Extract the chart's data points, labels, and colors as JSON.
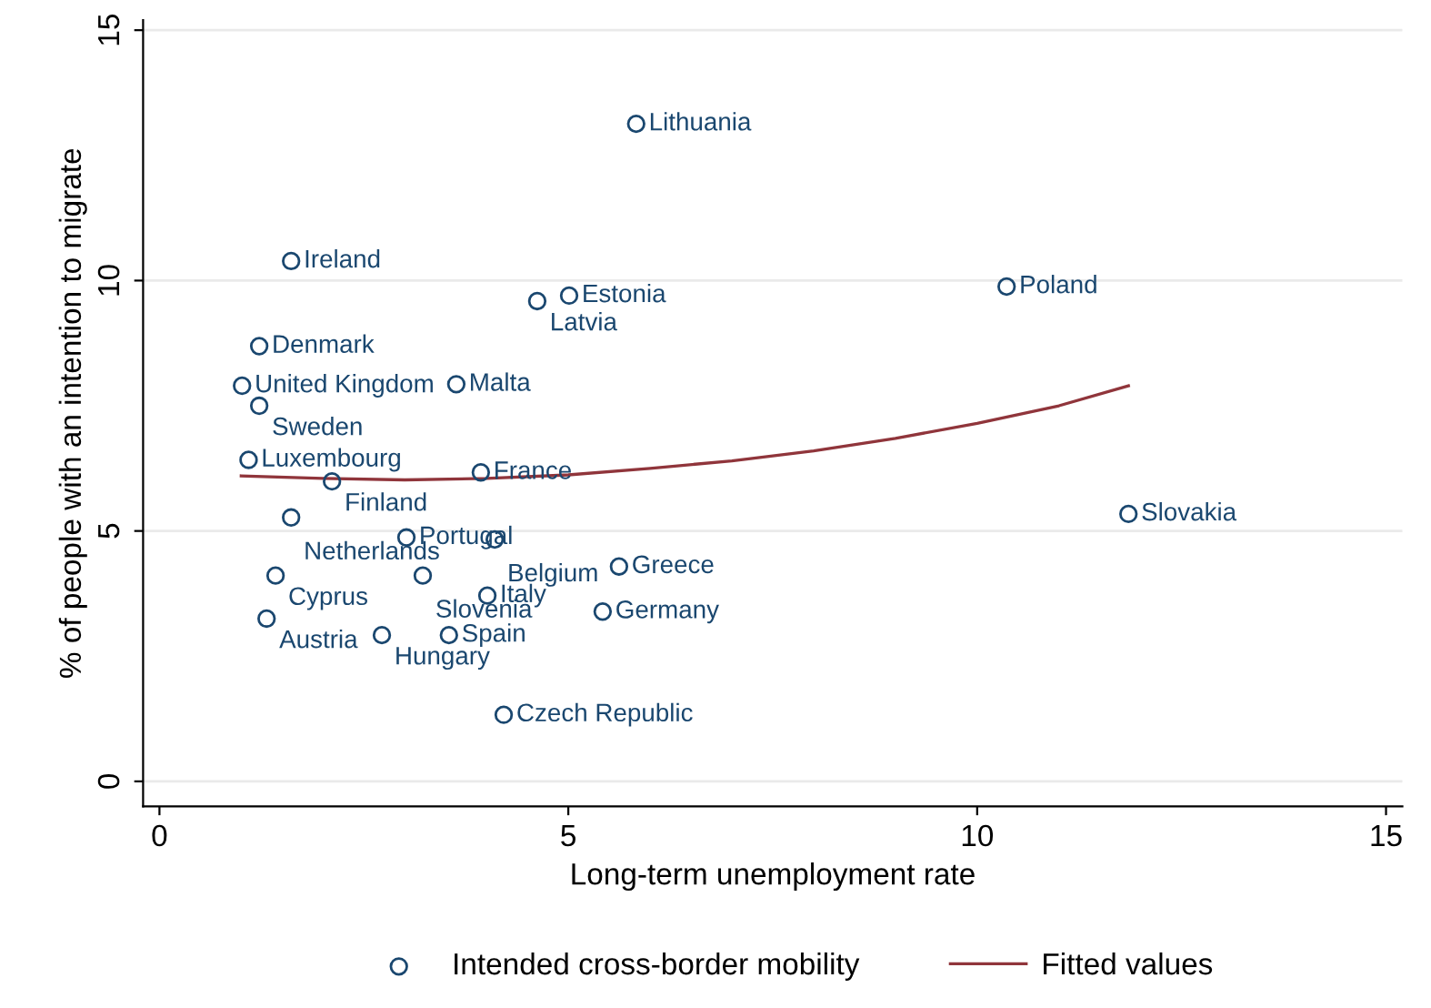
{
  "chart_data": {
    "type": "scatter",
    "xlabel": "Long-term unemployment rate",
    "ylabel": "% of people with an intention to migrate",
    "xlim": [
      -0.2,
      15.2
    ],
    "ylim": [
      -0.5,
      15.2
    ],
    "xticks": [
      0,
      5,
      10,
      15
    ],
    "yticks": [
      0,
      5,
      10,
      15
    ],
    "grid": "y",
    "legend": "bottom",
    "series": [
      {
        "name": "Intended cross-border mobility",
        "color": "#1a476f",
        "marker": "circle",
        "x": [
          5.83,
          1.61,
          4.62,
          5.01,
          1.22,
          1.01,
          3.63,
          1.22,
          1.09,
          2.11,
          3.93,
          1.61,
          3.02,
          4.1,
          1.42,
          3.22,
          4.01,
          5.62,
          1.31,
          5.42,
          2.72,
          3.54,
          4.21,
          10.36,
          11.85
        ],
        "values": [
          13.13,
          10.39,
          9.59,
          9.7,
          8.69,
          7.9,
          7.93,
          7.5,
          6.42,
          5.99,
          6.17,
          5.27,
          4.87,
          4.83,
          4.11,
          4.11,
          3.71,
          4.29,
          3.25,
          3.39,
          2.92,
          2.92,
          1.33,
          9.88,
          5.34
        ]
      },
      {
        "name": "Fitted values",
        "type": "line",
        "color": "#90353b",
        "marker": "none",
        "line_style": "solid",
        "x": [
          1.0,
          2,
          3,
          4,
          5,
          6,
          7,
          8,
          9,
          10,
          11,
          11.85
        ],
        "values": [
          6.1,
          6.05,
          6.02,
          6.05,
          6.12,
          6.25,
          6.4,
          6.6,
          6.85,
          7.15,
          7.5,
          7.9
        ]
      }
    ],
    "annotations": [
      {
        "text": "Lithuania",
        "x": 5.83,
        "y": 13.13
      },
      {
        "text": "Ireland",
        "x": 1.61,
        "y": 10.39
      },
      {
        "text": "Latvia",
        "x": 4.62,
        "y": 9.59
      },
      {
        "text": "Estonia",
        "x": 5.01,
        "y": 9.7
      },
      {
        "text": "Denmark",
        "x": 1.22,
        "y": 8.69
      },
      {
        "text": "United Kingdom",
        "x": 1.01,
        "y": 7.9
      },
      {
        "text": "Malta",
        "x": 3.63,
        "y": 7.93
      },
      {
        "text": "Sweden",
        "x": 1.22,
        "y": 7.5
      },
      {
        "text": "Luxembourg",
        "x": 1.09,
        "y": 6.42
      },
      {
        "text": "Finland",
        "x": 2.11,
        "y": 5.99
      },
      {
        "text": "France",
        "x": 3.93,
        "y": 6.17
      },
      {
        "text": "Netherlands",
        "x": 1.61,
        "y": 5.27
      },
      {
        "text": "Portugal",
        "x": 3.02,
        "y": 4.87
      },
      {
        "text": "Belgium",
        "x": 4.1,
        "y": 4.83
      },
      {
        "text": "Cyprus",
        "x": 1.42,
        "y": 4.11
      },
      {
        "text": "Slovenia",
        "x": 3.22,
        "y": 4.11
      },
      {
        "text": "Italy",
        "x": 4.01,
        "y": 3.71
      },
      {
        "text": "Greece",
        "x": 5.62,
        "y": 4.29
      },
      {
        "text": "Austria",
        "x": 1.31,
        "y": 3.25
      },
      {
        "text": "Germany",
        "x": 5.42,
        "y": 3.39
      },
      {
        "text": "Hungary",
        "x": 2.72,
        "y": 2.92
      },
      {
        "text": "Spain",
        "x": 3.54,
        "y": 2.92
      },
      {
        "text": "Czech Republic",
        "x": 4.21,
        "y": 1.33
      },
      {
        "text": "Poland",
        "x": 10.36,
        "y": 9.88
      },
      {
        "text": "Slovakia",
        "x": 11.85,
        "y": 5.34
      }
    ]
  }
}
